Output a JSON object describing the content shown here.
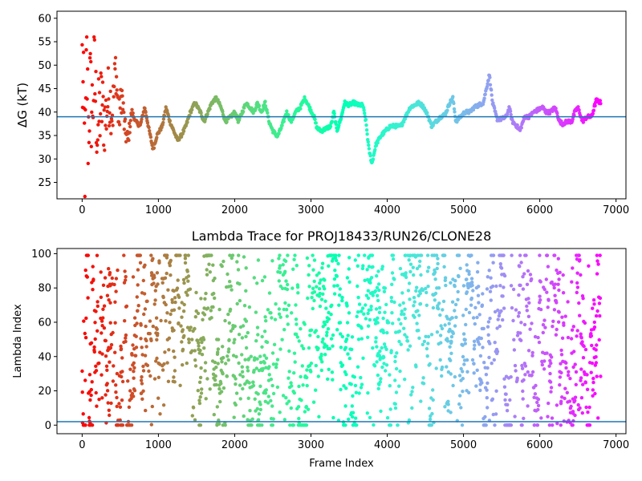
{
  "chart_data": [
    {
      "type": "scatter",
      "title": "",
      "xlabel": "",
      "ylabel": "ΔG (kT)",
      "xlim": [
        -330,
        7130
      ],
      "ylim": [
        21.5,
        61.5
      ],
      "xticks": [
        0,
        1000,
        2000,
        3000,
        4000,
        5000,
        6000,
        7000
      ],
      "yticks": [
        25,
        30,
        35,
        40,
        45,
        50,
        55,
        60
      ],
      "hline": 39.0,
      "hline_color": "#1f77b4",
      "colormap": "rainbow",
      "x_max": 6800,
      "grid": false,
      "legend": "none",
      "trace": [
        [
          0,
          50
        ],
        [
          20,
          38
        ],
        [
          40,
          28
        ],
        [
          60,
          52
        ],
        [
          80,
          35
        ],
        [
          100,
          45
        ],
        [
          130,
          40
        ],
        [
          160,
          48
        ],
        [
          200,
          36
        ],
        [
          250,
          42
        ],
        [
          300,
          38
        ],
        [
          350,
          44
        ],
        [
          400,
          40
        ],
        [
          440,
          50
        ],
        [
          480,
          38
        ],
        [
          520,
          44
        ],
        [
          560,
          36
        ],
        [
          600,
          34
        ],
        [
          650,
          40
        ],
        [
          700,
          38
        ],
        [
          760,
          37
        ],
        [
          820,
          41
        ],
        [
          880,
          36
        ],
        [
          930,
          32
        ],
        [
          980,
          35
        ],
        [
          1050,
          37
        ],
        [
          1100,
          41
        ],
        [
          1150,
          38
        ],
        [
          1200,
          36
        ],
        [
          1250,
          34
        ],
        [
          1300,
          35
        ],
        [
          1360,
          37
        ],
        [
          1420,
          40
        ],
        [
          1480,
          42
        ],
        [
          1550,
          40
        ],
        [
          1600,
          38
        ],
        [
          1650,
          40
        ],
        [
          1700,
          42
        ],
        [
          1760,
          43
        ],
        [
          1820,
          41
        ],
        [
          1880,
          38
        ],
        [
          1950,
          39
        ],
        [
          2000,
          40
        ],
        [
          2050,
          38
        ],
        [
          2100,
          40
        ],
        [
          2150,
          42
        ],
        [
          2200,
          41
        ],
        [
          2250,
          40
        ],
        [
          2300,
          42
        ],
        [
          2350,
          40
        ],
        [
          2400,
          42
        ],
        [
          2450,
          38
        ],
        [
          2500,
          36
        ],
        [
          2560,
          34.8
        ],
        [
          2620,
          37
        ],
        [
          2680,
          40
        ],
        [
          2740,
          38
        ],
        [
          2800,
          40
        ],
        [
          2860,
          41
        ],
        [
          2920,
          43
        ],
        [
          2980,
          41
        ],
        [
          3040,
          39
        ],
        [
          3080,
          36.5
        ],
        [
          3140,
          36
        ],
        [
          3200,
          36.5
        ],
        [
          3260,
          37
        ],
        [
          3300,
          40
        ],
        [
          3340,
          36
        ],
        [
          3400,
          39
        ],
        [
          3440,
          42
        ],
        [
          3500,
          41.5
        ],
        [
          3560,
          42
        ],
        [
          3620,
          41.5
        ],
        [
          3680,
          41.5
        ],
        [
          3720,
          38
        ],
        [
          3760,
          32
        ],
        [
          3800,
          29
        ],
        [
          3850,
          33
        ],
        [
          3920,
          35
        ],
        [
          3980,
          36
        ],
        [
          4040,
          37
        ],
        [
          4120,
          37
        ],
        [
          4180,
          37
        ],
        [
          4240,
          39
        ],
        [
          4300,
          41
        ],
        [
          4360,
          41.5
        ],
        [
          4420,
          42
        ],
        [
          4480,
          41
        ],
        [
          4540,
          39
        ],
        [
          4580,
          37
        ],
        [
          4640,
          38
        ],
        [
          4700,
          39
        ],
        [
          4760,
          39.5
        ],
        [
          4820,
          42
        ],
        [
          4860,
          43
        ],
        [
          4900,
          38
        ],
        [
          4960,
          39
        ],
        [
          5020,
          40
        ],
        [
          5080,
          40
        ],
        [
          5140,
          41
        ],
        [
          5200,
          41.5
        ],
        [
          5260,
          42
        ],
        [
          5300,
          45
        ],
        [
          5340,
          48
        ],
        [
          5380,
          42
        ],
        [
          5440,
          38.5
        ],
        [
          5500,
          38.5
        ],
        [
          5560,
          39
        ],
        [
          5600,
          41
        ],
        [
          5640,
          38
        ],
        [
          5700,
          37
        ],
        [
          5740,
          36
        ],
        [
          5800,
          39
        ],
        [
          5860,
          39
        ],
        [
          5920,
          40
        ],
        [
          5980,
          40.5
        ],
        [
          6040,
          41
        ],
        [
          6080,
          40
        ],
        [
          6140,
          40
        ],
        [
          6200,
          41
        ],
        [
          6260,
          38
        ],
        [
          6300,
          37.5
        ],
        [
          6360,
          38
        ],
        [
          6420,
          38
        ],
        [
          6460,
          40
        ],
        [
          6500,
          41
        ],
        [
          6560,
          38
        ],
        [
          6620,
          39
        ],
        [
          6680,
          39
        ],
        [
          6740,
          42.5
        ],
        [
          6800,
          42
        ]
      ]
    },
    {
      "type": "scatter",
      "title": "Lambda Trace for PROJ18433/RUN26/CLONE28",
      "xlabel": "Frame Index",
      "ylabel": "Lambda Index",
      "xlim": [
        -330,
        7130
      ],
      "ylim": [
        -5,
        103
      ],
      "xticks": [
        0,
        1000,
        2000,
        3000,
        4000,
        5000,
        6000,
        7000
      ],
      "yticks": [
        0,
        20,
        40,
        60,
        80,
        100
      ],
      "hline": 2,
      "hline_color": "#1f77b4",
      "colormap": "rainbow",
      "x_max": 6800,
      "lambda_range": [
        0,
        99
      ],
      "grid": false,
      "legend": "none"
    }
  ]
}
